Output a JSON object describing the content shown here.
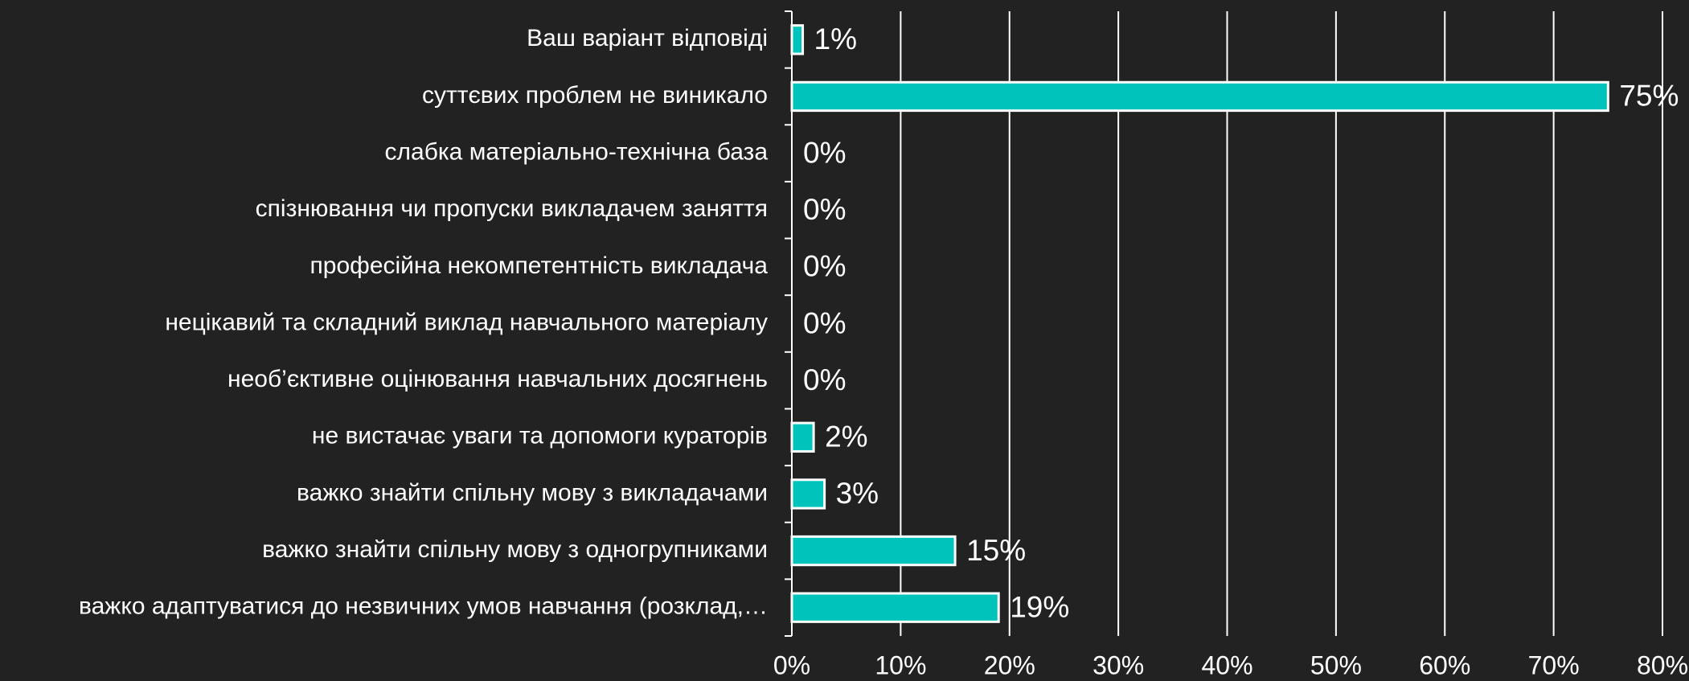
{
  "chart_data": {
    "type": "bar",
    "orientation": "horizontal",
    "categories": [
      "Ваш варіант відповіді",
      "суттєвих проблем не виникало",
      "слабка матеріально-технічна база",
      "спізнювання чи пропуски викладачем заняття",
      "професійна некомпетентність викладача",
      "нецікавий та складний виклад навчального матеріалу",
      "необ’єктивне оцінювання навчальних досягнень",
      "не вистачає уваги та допомоги кураторів",
      "важко знайти спільну мову з викладачами",
      "важко знайти спільну мову з одногрупниками",
      "важко адаптуватися до незвичних умов навчання (розклад,…"
    ],
    "values": [
      1,
      75,
      0,
      0,
      0,
      0,
      0,
      2,
      3,
      15,
      19
    ],
    "value_labels": [
      "1%",
      "75%",
      "0%",
      "0%",
      "0%",
      "0%",
      "0%",
      "2%",
      "3%",
      "15%",
      "19%"
    ],
    "color": "#00c4bc",
    "xlim": [
      0,
      80
    ],
    "xticks": [
      {
        "value": 0,
        "label": "0%"
      },
      {
        "value": 10,
        "label": "10%"
      },
      {
        "value": 20,
        "label": "20%"
      },
      {
        "value": 30,
        "label": "30%"
      },
      {
        "value": 40,
        "label": "40%"
      },
      {
        "value": 50,
        "label": "50%"
      },
      {
        "value": 60,
        "label": "60%"
      },
      {
        "value": 70,
        "label": "70%"
      },
      {
        "value": 80,
        "label": "80%"
      }
    ],
    "grid": true
  }
}
